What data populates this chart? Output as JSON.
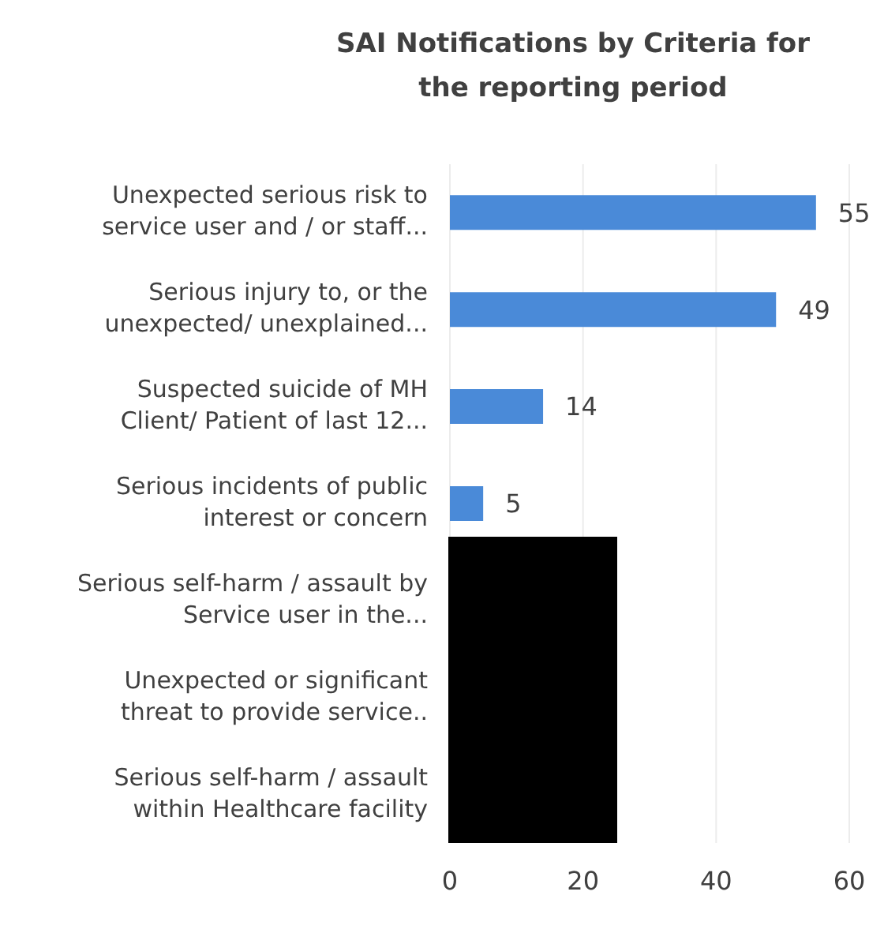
{
  "chart_data": {
    "type": "bar",
    "orientation": "horizontal",
    "title": "SAI Notifications by Criteria for the reporting period",
    "categories": [
      "Unexpected serious risk to service user and / or staff...",
      "Serious injury to, or the unexpected/ unexplained...",
      "Suspected suicide of MH Client/ Patient of last 12...",
      "Serious incidents of public interest or concern",
      "Serious self-harm / assault by Service user in the...",
      "Unexpected or significant threat to provide service..",
      "Serious self-harm / assault within Healthcare facility"
    ],
    "values": [
      55,
      49,
      14,
      5,
      null,
      null,
      null
    ],
    "color": "#4a8ad8",
    "data_labels": true,
    "xlim": [
      0,
      60
    ],
    "xticks": [
      0,
      20,
      40,
      60
    ],
    "grid": "x"
  }
}
